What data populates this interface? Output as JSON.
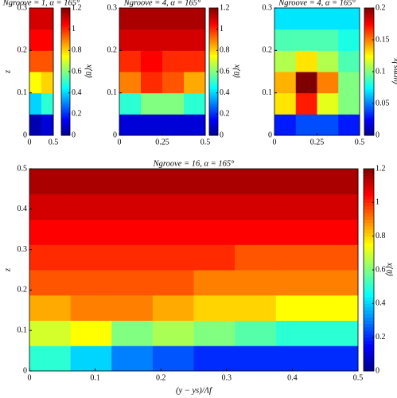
{
  "chart_data": [
    {
      "type": "heatmap",
      "title": "Ngroove = 1, α = 165°",
      "ylabel": "z",
      "xlim": [
        0,
        0.5
      ],
      "xticks": [
        0,
        0.5
      ],
      "ylim": [
        0,
        0.3
      ],
      "yticks": [
        0,
        0.1,
        0.2,
        0.3
      ],
      "colorbar": {
        "label": "⟨ū⟩x",
        "lim": [
          0,
          1.2
        ],
        "ticks": [
          0,
          0.2,
          0.4,
          0.6,
          0.8,
          1,
          1.2
        ]
      },
      "field": [
        [
          0.05,
          0.1
        ],
        [
          0.4,
          0.5
        ],
        [
          0.75,
          0.8
        ],
        [
          0.95,
          0.95
        ],
        [
          1.05,
          1.05
        ],
        [
          1.1,
          1.1
        ]
      ]
    },
    {
      "type": "heatmap",
      "title": "Ngroove = 4, α = 165°",
      "xlim": [
        0,
        0.5
      ],
      "xticks": [
        0,
        0.25,
        0.5
      ],
      "ylim": [
        0,
        0.3
      ],
      "yticks": [
        0,
        0.1,
        0.2,
        0.3
      ],
      "colorbar": {
        "label": "⟨ū⟩x",
        "lim": [
          0,
          1.2
        ],
        "ticks": [
          0,
          0.2,
          0.4,
          0.6,
          0.8,
          1,
          1.2
        ]
      },
      "field": [
        [
          0.1,
          0.1,
          0.1,
          0.1
        ],
        [
          0.5,
          0.6,
          0.6,
          0.5
        ],
        [
          0.9,
          1.0,
          0.95,
          0.85
        ],
        [
          1.0,
          1.05,
          1.0,
          1.0
        ],
        [
          1.1,
          1.1,
          1.1,
          1.1
        ],
        [
          1.15,
          1.15,
          1.15,
          1.15
        ]
      ]
    },
    {
      "type": "heatmap",
      "title": "Ngroove = 4, α = 165°",
      "xlim": [
        0,
        0.5
      ],
      "xticks": [
        0,
        0.25,
        0.5
      ],
      "ylim": [
        0,
        0.3
      ],
      "yticks": [
        0,
        0.1,
        0.2,
        0.3
      ],
      "colorbar": {
        "label": "⟨urms⟩x",
        "lim": [
          0,
          0.2
        ],
        "ticks": [
          0,
          0.05,
          0.1,
          0.15,
          0.2
        ]
      },
      "field": [
        [
          0.03,
          0.04,
          0.04,
          0.03
        ],
        [
          0.13,
          0.17,
          0.12,
          0.1
        ],
        [
          0.14,
          0.2,
          0.15,
          0.1
        ],
        [
          0.11,
          0.13,
          0.11,
          0.09
        ],
        [
          0.09,
          0.09,
          0.09,
          0.08
        ],
        [
          0.07,
          0.07,
          0.07,
          0.07
        ]
      ]
    },
    {
      "type": "heatmap",
      "title": "Ngroove = 16, α = 165°",
      "xlabel": "(y − ys)/Λf",
      "ylabel": "z",
      "xlim": [
        0,
        0.5
      ],
      "xticks": [
        0,
        0.1,
        0.2,
        0.3,
        0.4,
        0.5
      ],
      "ylim": [
        0,
        0.5
      ],
      "yticks": [
        0,
        0.1,
        0.2,
        0.3,
        0.4,
        0.5
      ],
      "colorbar": {
        "label": "⟨ū⟩x",
        "lim": [
          0,
          1.2
        ],
        "ticks": [
          0,
          0.2,
          0.4,
          0.6,
          0.8,
          1,
          1.2
        ]
      },
      "field": [
        [
          0.5,
          0.4,
          0.3,
          0.25,
          0.2,
          0.2,
          0.2,
          0.2
        ],
        [
          0.7,
          0.75,
          0.6,
          0.65,
          0.6,
          0.55,
          0.5,
          0.5
        ],
        [
          0.85,
          0.9,
          0.9,
          0.85,
          0.8,
          0.8,
          0.75,
          0.75
        ],
        [
          0.95,
          0.95,
          0.95,
          0.95,
          0.9,
          0.9,
          0.9,
          0.9
        ],
        [
          1.0,
          1.0,
          1.0,
          1.0,
          1.0,
          0.95,
          0.95,
          0.95
        ],
        [
          1.05,
          1.05,
          1.05,
          1.05,
          1.05,
          1.05,
          1.05,
          1.05
        ],
        [
          1.1,
          1.1,
          1.1,
          1.1,
          1.1,
          1.1,
          1.1,
          1.1
        ],
        [
          1.15,
          1.15,
          1.15,
          1.15,
          1.15,
          1.15,
          1.15,
          1.15
        ]
      ]
    }
  ]
}
